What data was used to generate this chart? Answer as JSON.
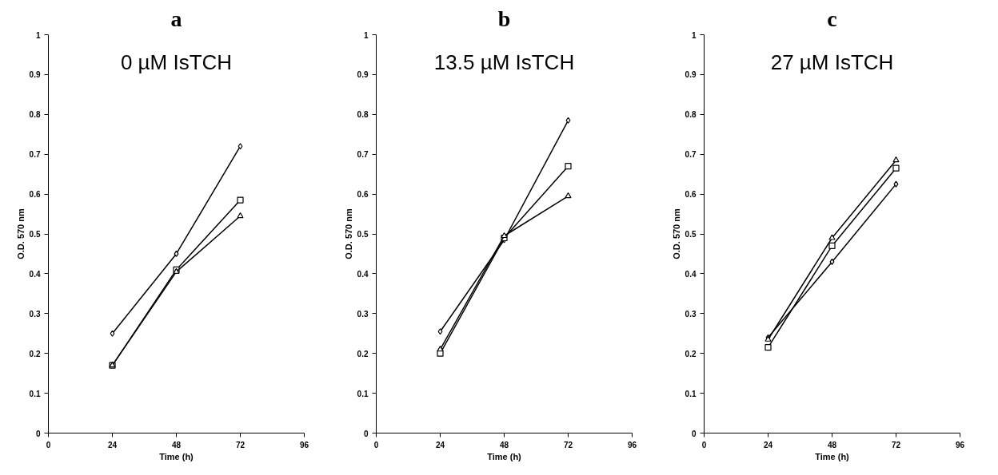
{
  "chart_data": [
    {
      "type": "line",
      "title": "a",
      "subtitle": "0 µM IsTCH",
      "xlabel": "Time (h)",
      "ylabel": "O.D. 570 nm",
      "x": [
        24,
        48,
        72
      ],
      "xlim": [
        0,
        96
      ],
      "xticks": [
        0,
        24,
        48,
        72,
        96
      ],
      "ylim": [
        0,
        1
      ],
      "yticks": [
        0,
        0.1,
        0.2,
        0.3,
        0.4,
        0.5,
        0.6,
        0.7,
        0.8,
        0.9,
        1
      ],
      "grid": false,
      "series": [
        {
          "color": "#000000",
          "marker": "diamond",
          "values": [
            0.25,
            0.45,
            0.72
          ]
        },
        {
          "color": "#000000",
          "marker": "square",
          "values": [
            0.17,
            0.41,
            0.585
          ]
        },
        {
          "color": "#000000",
          "marker": "triangle",
          "values": [
            0.17,
            0.405,
            0.545
          ]
        }
      ]
    },
    {
      "type": "line",
      "title": "b",
      "subtitle": "13.5 µM IsTCH",
      "xlabel": "Time (h)",
      "ylabel": "O.D. 570 nm",
      "x": [
        24,
        48,
        72
      ],
      "xlim": [
        0,
        96
      ],
      "xticks": [
        0,
        24,
        48,
        72,
        96
      ],
      "ylim": [
        0,
        1
      ],
      "yticks": [
        0,
        0.1,
        0.2,
        0.3,
        0.4,
        0.5,
        0.6,
        0.7,
        0.8,
        0.9,
        1
      ],
      "grid": false,
      "series": [
        {
          "color": "#000000",
          "marker": "diamond",
          "values": [
            0.255,
            0.485,
            0.785
          ]
        },
        {
          "color": "#000000",
          "marker": "square",
          "values": [
            0.2,
            0.49,
            0.67
          ]
        },
        {
          "color": "#000000",
          "marker": "triangle",
          "values": [
            0.21,
            0.495,
            0.595
          ]
        }
      ]
    },
    {
      "type": "line",
      "title": "c",
      "subtitle": "27 µM IsTCH",
      "xlabel": "Time (h)",
      "ylabel": "O.D. 570 nm",
      "x": [
        24,
        48,
        72
      ],
      "xlim": [
        0,
        96
      ],
      "xticks": [
        0,
        24,
        48,
        72,
        96
      ],
      "ylim": [
        0,
        1
      ],
      "yticks": [
        0,
        0.1,
        0.2,
        0.3,
        0.4,
        0.5,
        0.6,
        0.7,
        0.8,
        0.9,
        1
      ],
      "grid": false,
      "series": [
        {
          "color": "#000000",
          "marker": "diamond",
          "values": [
            0.24,
            0.43,
            0.625
          ]
        },
        {
          "color": "#000000",
          "marker": "square",
          "values": [
            0.215,
            0.47,
            0.665
          ]
        },
        {
          "color": "#000000",
          "marker": "triangle",
          "values": [
            0.235,
            0.49,
            0.685
          ]
        }
      ]
    }
  ]
}
